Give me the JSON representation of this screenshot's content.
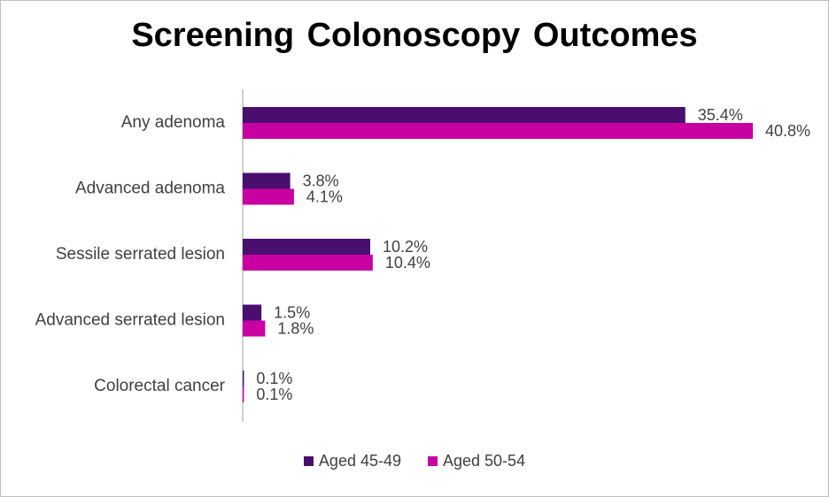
{
  "chart_data": {
    "type": "bar",
    "orientation": "horizontal",
    "title": "Screening Colonoscopy Outcomes",
    "categories": [
      "Any adenoma",
      "Advanced adenoma",
      "Sessile serrated lesion",
      "Advanced serrated lesion",
      "Colorectal cancer"
    ],
    "series": [
      {
        "name": "Aged 45-49",
        "color": "#4a0e6f",
        "values": [
          35.4,
          3.8,
          10.2,
          1.5,
          0.1
        ],
        "labels": [
          "35.4%",
          "3.8%",
          "10.2%",
          "1.5%",
          "0.1%"
        ]
      },
      {
        "name": "Aged 50-54",
        "color": "#c800a1",
        "values": [
          40.8,
          4.1,
          10.4,
          1.8,
          0.1
        ],
        "labels": [
          "40.8%",
          "4.1%",
          "10.4%",
          "1.8%",
          "0.1%"
        ]
      }
    ],
    "xlim": [
      0,
      42
    ],
    "xlabel": "",
    "ylabel": "",
    "grid": false,
    "legend_position": "bottom"
  }
}
